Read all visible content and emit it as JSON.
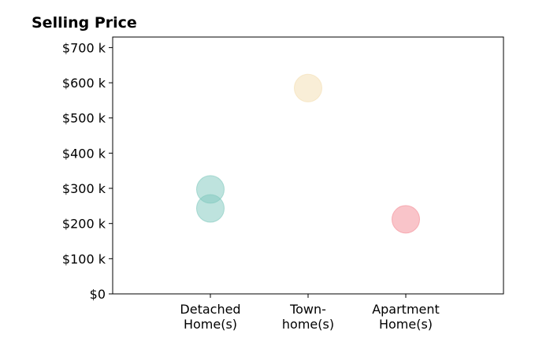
{
  "chart_data": {
    "type": "scatter",
    "title": "Selling Price",
    "xlabel": "",
    "ylabel": "",
    "categories": [
      [
        "Detached",
        "Home(s)"
      ],
      [
        "Town-",
        "home(s)"
      ],
      [
        "Apartment",
        "Home(s)"
      ]
    ],
    "ylim": [
      0,
      730000
    ],
    "yticks": [
      {
        "value": 0,
        "label": "$0"
      },
      {
        "value": 100000,
        "label": "$100 k"
      },
      {
        "value": 200000,
        "label": "$200 k"
      },
      {
        "value": 300000,
        "label": "$300 k"
      },
      {
        "value": 400000,
        "label": "$400 k"
      },
      {
        "value": 500000,
        "label": "$500 k"
      },
      {
        "value": 600000,
        "label": "$600 k"
      },
      {
        "value": 700000,
        "label": "$700 k"
      }
    ],
    "points": [
      {
        "category": 0,
        "value": 297000,
        "color": "#7ec8bd"
      },
      {
        "category": 0,
        "value": 243000,
        "color": "#7ec8bd"
      },
      {
        "category": 1,
        "value": 585000,
        "color": "#f3deb0"
      },
      {
        "category": 2,
        "value": 212000,
        "color": "#f48a94"
      }
    ],
    "grid": false,
    "legend": "none"
  }
}
